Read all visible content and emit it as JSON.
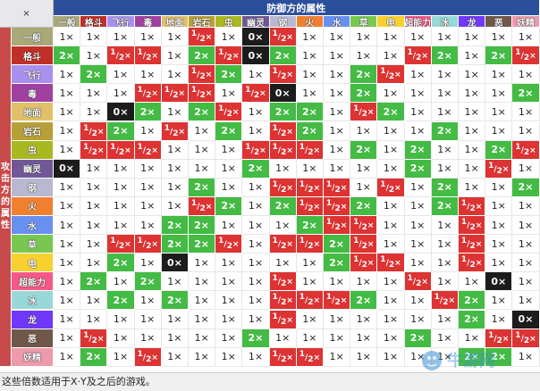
{
  "corner_label": "×",
  "defender_header": "防御方的属性",
  "attacker_header": "攻击方的属性",
  "types": [
    "一般",
    "格斗",
    "飞行",
    "毒",
    "地面",
    "岩石",
    "虫",
    "幽灵",
    "钢",
    "火",
    "水",
    "草",
    "电",
    "超能力",
    "冰",
    "龙",
    "恶",
    "妖精"
  ],
  "type_colors": [
    "#a8a878",
    "#c03028",
    "#a890f0",
    "#a040a0",
    "#e0c068",
    "#b8a038",
    "#a8b820",
    "#705898",
    "#b8b8d0",
    "#f08030",
    "#6890f0",
    "#78c850",
    "#f8d030",
    "#f85888",
    "#98d8d8",
    "#7038f8",
    "#705848",
    "#ee99ac"
  ],
  "value_labels": {
    "1": "1×",
    "2": "2×",
    "0": "0×",
    "h_num": "1",
    "h_den": "2",
    "h_suffix": "×"
  },
  "matrix": [
    [
      "1",
      "1",
      "1",
      "1",
      "1",
      "h",
      "1",
      "0",
      "h",
      "1",
      "1",
      "1",
      "1",
      "1",
      "1",
      "1",
      "1",
      "1"
    ],
    [
      "2",
      "1",
      "h",
      "h",
      "1",
      "2",
      "h",
      "0",
      "2",
      "1",
      "1",
      "1",
      "1",
      "h",
      "2",
      "1",
      "2",
      "h"
    ],
    [
      "1",
      "2",
      "1",
      "1",
      "1",
      "h",
      "2",
      "1",
      "h",
      "1",
      "1",
      "2",
      "h",
      "1",
      "1",
      "1",
      "1",
      "1"
    ],
    [
      "1",
      "1",
      "1",
      "h",
      "h",
      "h",
      "1",
      "h",
      "0",
      "1",
      "1",
      "2",
      "1",
      "1",
      "1",
      "1",
      "1",
      "2"
    ],
    [
      "1",
      "1",
      "0",
      "2",
      "1",
      "2",
      "h",
      "1",
      "2",
      "2",
      "1",
      "h",
      "2",
      "1",
      "1",
      "1",
      "1",
      "1"
    ],
    [
      "1",
      "h",
      "2",
      "1",
      "h",
      "1",
      "2",
      "1",
      "h",
      "2",
      "1",
      "1",
      "1",
      "1",
      "2",
      "1",
      "1",
      "1"
    ],
    [
      "1",
      "h",
      "h",
      "h",
      "1",
      "1",
      "1",
      "h",
      "h",
      "h",
      "1",
      "2",
      "1",
      "2",
      "1",
      "1",
      "2",
      "h"
    ],
    [
      "0",
      "1",
      "1",
      "1",
      "1",
      "1",
      "1",
      "2",
      "1",
      "1",
      "1",
      "1",
      "1",
      "2",
      "1",
      "1",
      "h",
      "1"
    ],
    [
      "1",
      "1",
      "1",
      "1",
      "1",
      "2",
      "1",
      "1",
      "h",
      "h",
      "h",
      "1",
      "h",
      "1",
      "2",
      "1",
      "1",
      "2"
    ],
    [
      "1",
      "1",
      "1",
      "1",
      "1",
      "h",
      "2",
      "1",
      "2",
      "h",
      "h",
      "2",
      "1",
      "1",
      "2",
      "h",
      "1",
      "1"
    ],
    [
      "1",
      "1",
      "1",
      "1",
      "2",
      "2",
      "1",
      "1",
      "1",
      "2",
      "h",
      "h",
      "1",
      "1",
      "1",
      "h",
      "1",
      "1"
    ],
    [
      "1",
      "1",
      "h",
      "h",
      "2",
      "2",
      "h",
      "1",
      "h",
      "h",
      "2",
      "h",
      "1",
      "1",
      "1",
      "h",
      "1",
      "1"
    ],
    [
      "1",
      "1",
      "2",
      "1",
      "0",
      "1",
      "1",
      "1",
      "1",
      "1",
      "2",
      "h",
      "h",
      "1",
      "1",
      "h",
      "1",
      "1"
    ],
    [
      "1",
      "2",
      "1",
      "2",
      "1",
      "1",
      "1",
      "1",
      "h",
      "1",
      "1",
      "1",
      "1",
      "h",
      "1",
      "1",
      "0",
      "1"
    ],
    [
      "1",
      "1",
      "2",
      "1",
      "2",
      "1",
      "1",
      "1",
      "h",
      "h",
      "h",
      "2",
      "1",
      "1",
      "h",
      "2",
      "1",
      "1"
    ],
    [
      "1",
      "1",
      "1",
      "1",
      "1",
      "1",
      "1",
      "1",
      "h",
      "1",
      "1",
      "1",
      "1",
      "1",
      "1",
      "2",
      "1",
      "0"
    ],
    [
      "1",
      "h",
      "1",
      "1",
      "1",
      "1",
      "1",
      "2",
      "1",
      "1",
      "1",
      "1",
      "1",
      "2",
      "1",
      "1",
      "h",
      "h"
    ],
    [
      "1",
      "2",
      "1",
      "h",
      "1",
      "1",
      "1",
      "1",
      "h",
      "h",
      "1",
      "1",
      "1",
      "1",
      "1",
      "2",
      "2",
      "1"
    ]
  ],
  "footer_note": "这些倍数适用于X·Y及之后的游戏。",
  "watermark": "牛游网"
}
